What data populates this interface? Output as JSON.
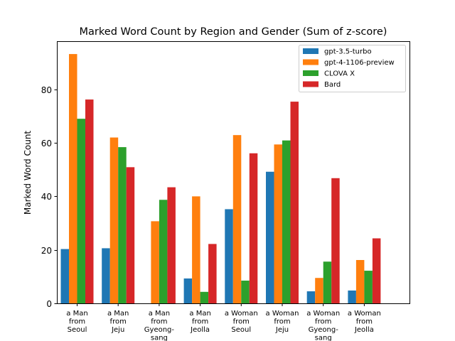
{
  "chart_data": {
    "type": "bar",
    "title": "Marked Word Count by Region and Gender (Sum of z-score)",
    "xlabel": "",
    "ylabel": "Marked Word Count",
    "ylim": [
      0,
      98
    ],
    "yticks": [
      0,
      20,
      40,
      60,
      80
    ],
    "grid": false,
    "legend_position": "top-right",
    "categories": [
      [
        "a Man",
        "from",
        "Seoul"
      ],
      [
        "a Man",
        "from",
        "Jeju"
      ],
      [
        "a Man",
        "from",
        "Gyeong-",
        "sang"
      ],
      [
        "a Man",
        "from",
        "Jeolla"
      ],
      [
        "a Woman",
        "from",
        "Seoul"
      ],
      [
        "a Woman",
        "from",
        "Jeju"
      ],
      [
        "a Woman",
        "from",
        "Gyeong-",
        "sang"
      ],
      [
        "a Woman",
        "from",
        "Jeolla"
      ]
    ],
    "series": [
      {
        "name": "gpt-3.5-turbo",
        "color": "#1f77b4",
        "values": [
          20.3,
          20.6,
          0,
          9.3,
          35.2,
          49.2,
          4.5,
          4.8
        ]
      },
      {
        "name": "gpt-4-1106-preview",
        "color": "#ff7f0e",
        "values": [
          93.2,
          62.0,
          30.7,
          40.0,
          62.9,
          59.4,
          9.5,
          16.2
        ]
      },
      {
        "name": "CLOVA X",
        "color": "#2ca02c",
        "values": [
          69.0,
          58.4,
          38.7,
          4.3,
          8.5,
          60.9,
          15.6,
          12.2
        ]
      },
      {
        "name": "Bard",
        "color": "#d62728",
        "values": [
          76.2,
          50.9,
          43.4,
          22.2,
          56.1,
          75.4,
          46.8,
          24.3
        ]
      }
    ]
  }
}
